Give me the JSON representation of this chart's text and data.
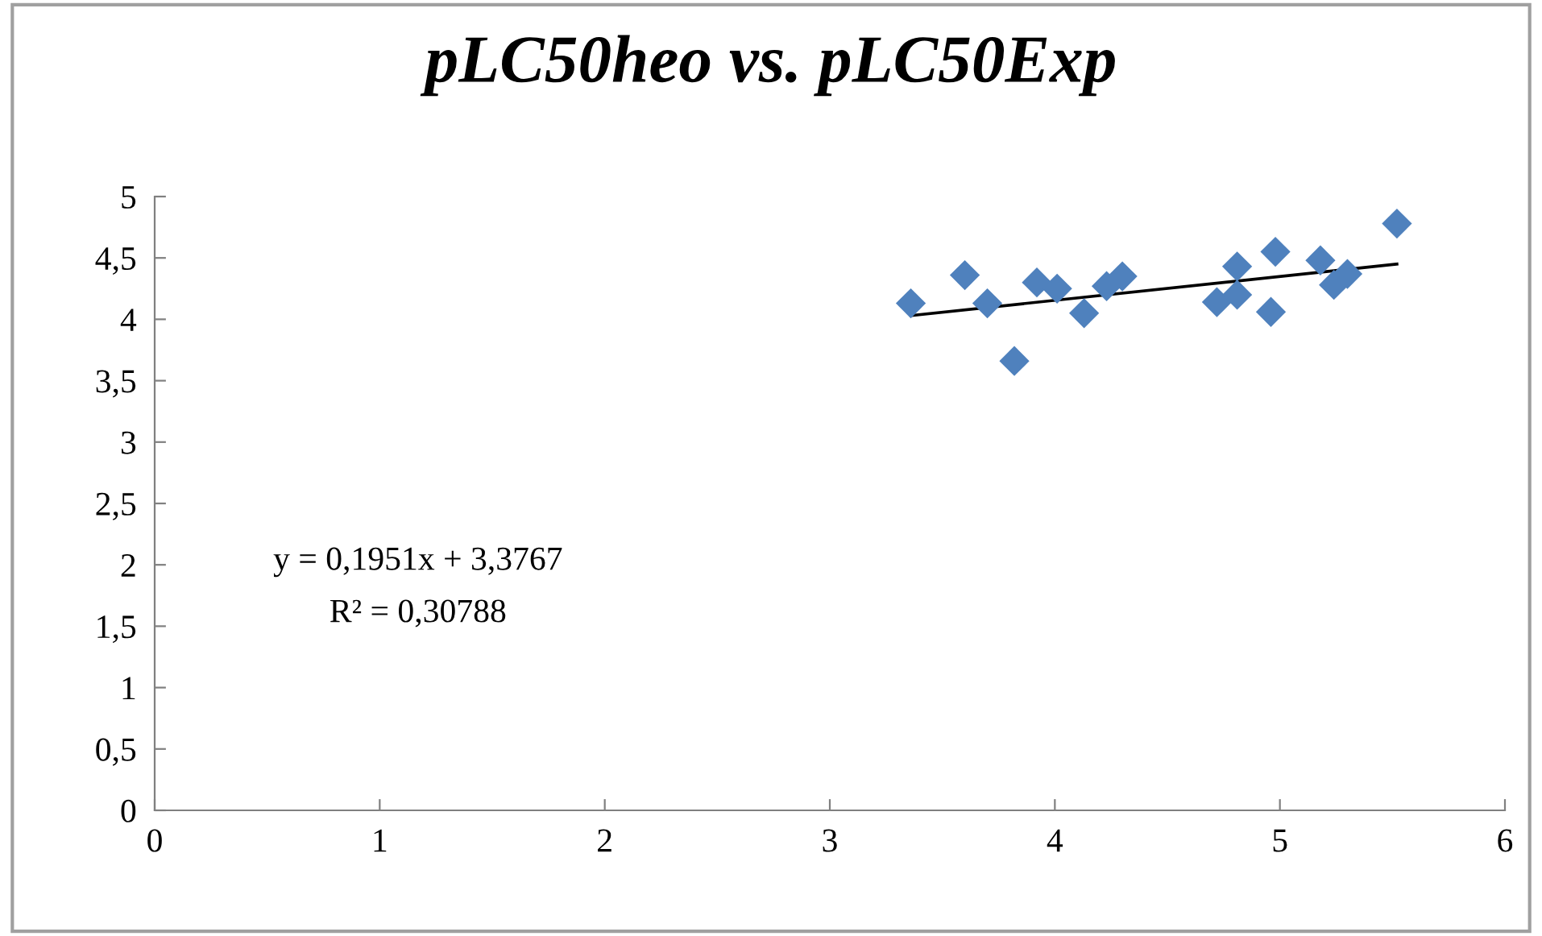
{
  "chart_data": {
    "type": "scatter",
    "title": "pLC50heo vs. pLC50Exp",
    "x": [
      3.36,
      3.6,
      3.7,
      3.82,
      3.92,
      4.01,
      4.13,
      4.23,
      4.3,
      4.72,
      4.81,
      4.81,
      4.96,
      4.98,
      5.18,
      5.24,
      5.3,
      5.52
    ],
    "series": [
      {
        "color": "#4f81bd",
        "marker": "diamond",
        "values": [
          4.13,
          4.36,
          4.13,
          3.66,
          4.3,
          4.25,
          4.05,
          4.27,
          4.35,
          4.14,
          4.43,
          4.2,
          4.06,
          4.55,
          4.48,
          4.28,
          4.37,
          4.78
        ]
      },
      {
        "type": "line",
        "color": "#000000",
        "marker": "none",
        "x": [
          3.36,
          5.52
        ],
        "values": [
          4.03,
          4.45
        ]
      }
    ],
    "xlim": [
      0,
      6
    ],
    "xticks": [
      0,
      1,
      2,
      3,
      4,
      5,
      6
    ],
    "ylim": [
      0,
      5
    ],
    "yticks": [
      0,
      {
        "value": 0.5,
        "label": "0,5"
      },
      1,
      {
        "value": 1.5,
        "label": "1,5"
      },
      2,
      {
        "value": 2.5,
        "label": "2,5"
      },
      3,
      {
        "value": 3.5,
        "label": "3,5"
      },
      4,
      {
        "value": 4.5,
        "label": "4,5"
      },
      5
    ],
    "grid": false,
    "legend": false,
    "annotations": [
      "y = 0,1951x + 3,3767",
      "R² = 0,30788"
    ]
  }
}
